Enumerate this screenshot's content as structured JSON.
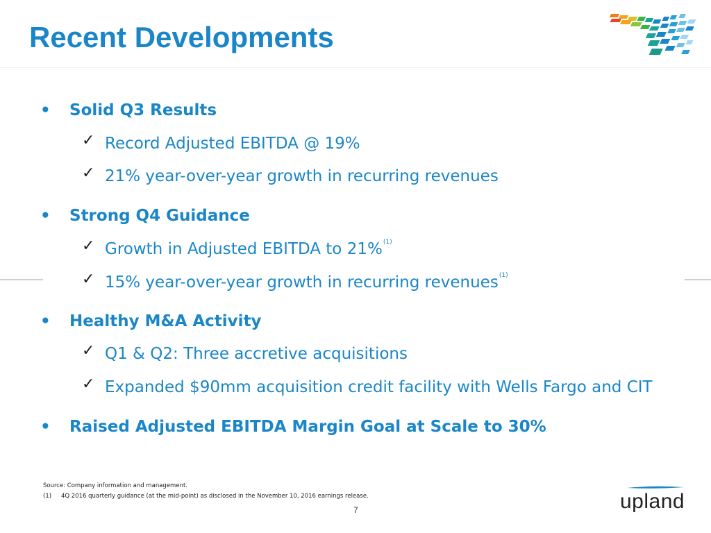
{
  "slide": {
    "title": "Recent Developments",
    "page_number": "7"
  },
  "bullets": [
    {
      "symbol": "•",
      "label": "Solid Q3 Results",
      "items": [
        {
          "check": "✓",
          "text": "Record Adjusted EBITDA @ 19%",
          "sup": ""
        },
        {
          "check": "✓",
          "text": "21% year-over-year growth in recurring revenues",
          "sup": ""
        }
      ]
    },
    {
      "symbol": "•",
      "label": "Strong Q4 Guidance",
      "items": [
        {
          "check": "✓",
          "text": "Growth in Adjusted EBITDA to 21%",
          "sup": "(1)"
        },
        {
          "check": "✓",
          "text": "15% year-over-year growth in recurring revenues",
          "sup": "(1)"
        }
      ]
    },
    {
      "symbol": "•",
      "label": "Healthy M&A Activity",
      "items": [
        {
          "check": "✓",
          "text": "Q1 & Q2: Three accretive acquisitions",
          "sup": ""
        },
        {
          "check": "✓",
          "text": "Expanded $90mm acquisition credit facility with Wells Fargo and CIT",
          "sup": ""
        }
      ]
    },
    {
      "symbol": "•",
      "label": "Raised Adjusted EBITDA Margin Goal at Scale to 30%",
      "items": []
    }
  ],
  "footnotes": {
    "source": "Source: Company information and management.",
    "note_number": "(1)",
    "note_text": "4Q 2016 quarterly guidance (at the mid-point) as disclosed in the November 10, 2016 earnings release."
  },
  "brand": {
    "name": "upland",
    "logo_icon": "upland-mosaic-logo-icon",
    "colors": {
      "primary": "#1a86c7",
      "text": "#222222"
    }
  }
}
